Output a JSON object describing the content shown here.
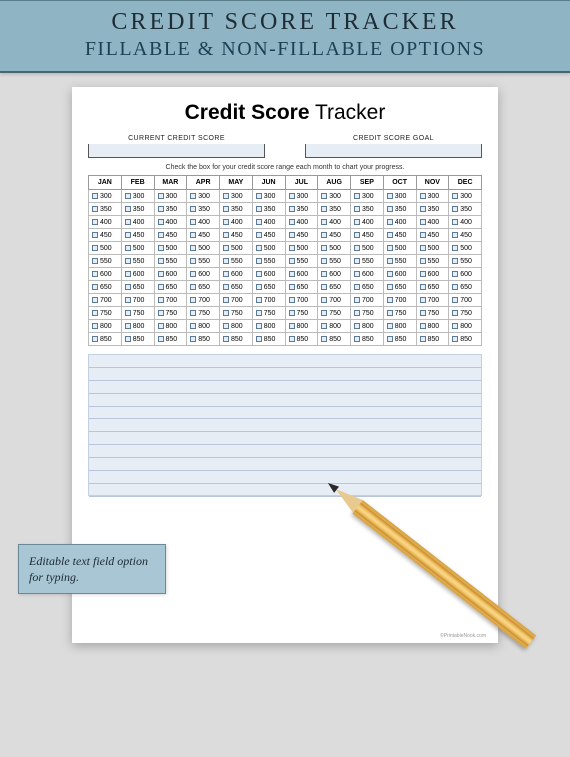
{
  "banner": {
    "line1": "CREDIT SCORE TRACKER",
    "line2": "FILLABLE & NON-FILLABLE OPTIONS"
  },
  "page": {
    "title_bold": "Credit Score",
    "title_light": " Tracker",
    "current_label": "CURRENT CREDIT SCORE",
    "goal_label": "CREDIT SCORE GOAL",
    "instruction": "Check the box for your credit score range each month to chart your progress.",
    "months": [
      "JAN",
      "FEB",
      "MAR",
      "APR",
      "MAY",
      "JUN",
      "JUL",
      "AUG",
      "SEP",
      "OCT",
      "NOV",
      "DEC"
    ],
    "scores": [
      300,
      350,
      400,
      450,
      500,
      550,
      600,
      650,
      700,
      750,
      800,
      850
    ],
    "footer": "©PrintableNook.com"
  },
  "callout": {
    "text": "Editable text field option for  typing."
  },
  "styling": {
    "banner_bg": "#8fb5c4",
    "page_bg": "#ffffff",
    "body_bg": "#dcdcdc",
    "field_bg": "#e6edf5",
    "notes_bg": "#e6edf5",
    "callout_bg": "#a8c6d3",
    "grid_border": "#bbbbbb",
    "checkbox_border": "#5a7a9c",
    "pencil_yellow": "#f3c56a",
    "pencil_wood": "#e8c990",
    "pencil_graphite": "#2a2a2a",
    "notes_line_count": 11
  }
}
